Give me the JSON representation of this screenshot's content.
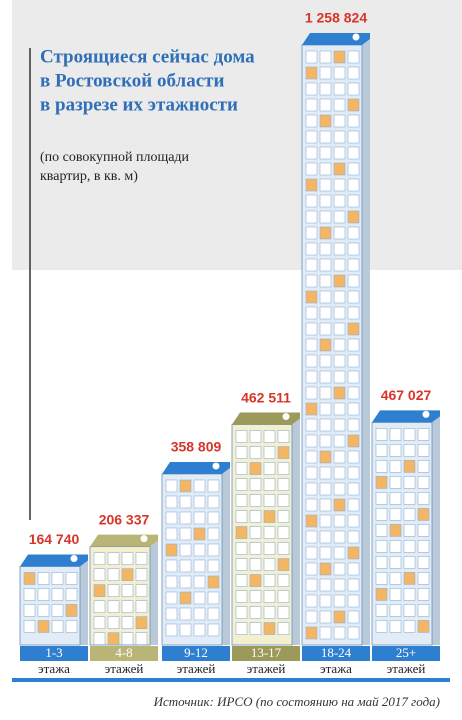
{
  "chart_data": {
    "type": "bar",
    "title": [
      "Строящиеся сейчас дома",
      "в Ростовской области",
      "в разрезе их этажности"
    ],
    "subtitle": [
      "(по совокупной площади",
      "квартир, в кв. м)"
    ],
    "categories": [
      "1-3",
      "4-8",
      "9-12",
      "13-17",
      "18-24",
      "25+"
    ],
    "category_units": [
      "этажа",
      "этажей",
      "этажей",
      "этажей",
      "этажа",
      "этажей"
    ],
    "values": [
      164740,
      206337,
      358809,
      462511,
      1258824,
      467027
    ],
    "value_labels": [
      "164 740",
      "206 337",
      "358 809",
      "462 511",
      "1 258 824",
      "467 027"
    ],
    "colors": [
      "#2f7fd0",
      "#b8b577",
      "#2f7fd0",
      "#9c9a5a",
      "#2f7fd0",
      "#2f7fd0"
    ],
    "facade_colors": [
      "#e2ecf7",
      "#f3efcf",
      "#e2ecf7",
      "#f3efcf",
      "#e2ecf7",
      "#e2ecf7"
    ],
    "source": "Источник: ИРСО (по состоянию на май 2017 года)"
  }
}
